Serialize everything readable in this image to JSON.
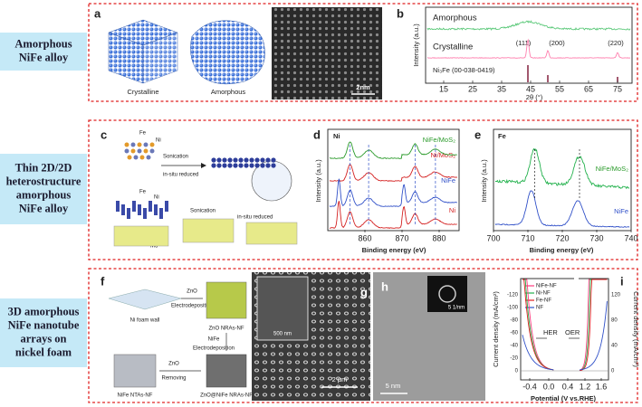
{
  "rows": [
    {
      "label": [
        "Amorphous",
        "NiFe alloy"
      ]
    },
    {
      "label": [
        "Thin 2D/2D",
        "heterostructure",
        "amorphous",
        "NiFe alloy"
      ]
    },
    {
      "label": [
        "3D amorphous",
        "NiFe nanotube",
        "arrays on",
        "nickel foam"
      ]
    }
  ],
  "panels": {
    "a": {
      "letter": "a",
      "crystalline": "Crystalline",
      "amorphous": "Amorphous",
      "scale_bar": "2nm"
    },
    "b": {
      "letter": "b",
      "trace_amorphous": "Amorphous",
      "trace_crystalline": "Crystalline",
      "peaks": [
        "(111)",
        "(200)",
        "(220)"
      ],
      "reference": "Ni₃Fe (00-038-0419)",
      "y_label": "Intensity (a.u.)",
      "x_label": "2θ (°)",
      "x_ticks": [
        "15",
        "25",
        "35",
        "45",
        "55",
        "65",
        "75"
      ]
    },
    "c": {
      "letter": "c",
      "top": {
        "fe": "Fe",
        "ni": "Ni",
        "step1": "Sonication",
        "step2": "in-situ reduced"
      },
      "bottom": {
        "fe": "Fe",
        "ni": "Ni",
        "s": "S",
        "mo": "Mo",
        "step1": "Sonication",
        "step2": "in-situ reduced"
      }
    },
    "d": {
      "letter": "d",
      "element": "Ni",
      "traces": [
        "NiFe/MoS₂",
        "Ni/MoS₂",
        "NiFe",
        "Ni"
      ],
      "y_label": "Intensity (a.u.)",
      "x_label": "Binding energy (eV)",
      "x_ticks": [
        "860",
        "870",
        "880"
      ]
    },
    "e": {
      "letter": "e",
      "element": "Fe",
      "traces": [
        "NiFe/MoS₂",
        "NiFe"
      ],
      "y_label": "Intensity (a.u.)",
      "x_label": "Binding energy (eV)",
      "x_ticks": [
        "700",
        "710",
        "720",
        "730",
        "740"
      ]
    },
    "f": {
      "letter": "f",
      "foam": "Ni foam wall",
      "step1a": "ZnO",
      "step1b": "Electrodeposition",
      "zno": "ZnO NRAs-NF",
      "step2a": "NiFe",
      "step2b": "Electrodeposition",
      "step3a": "ZnO",
      "step3b": "Removing",
      "core_shell": "ZnO@NiFe NRAs-NF",
      "tubes": "NiFe NTAs-NF"
    },
    "g": {
      "letter": "g",
      "inset_scale": "500 nm",
      "scale_bar": "2 μm"
    },
    "h": {
      "letter": "h",
      "inset_scale": "5 1/nm",
      "scale_bar": "5 nm"
    },
    "i": {
      "letter": "i",
      "legend": [
        "NiFe-NF",
        "Ni-NF",
        "Fe-NF",
        "NF"
      ],
      "her": "HER",
      "oer": "OER",
      "y_label": "Current density (mA/cm²)",
      "y2_label": "Current density (mA/cm²)",
      "x_label": "Potential (V vs.RHE)",
      "y_ticks": [
        "-120",
        "-100",
        "-80",
        "-60",
        "-40",
        "-20",
        "0"
      ],
      "y2_ticks": [
        "0",
        "40",
        "80",
        "120"
      ],
      "x_ticks": [
        "-0.4",
        "0.0",
        "0.4",
        "1.2",
        "1.6"
      ]
    }
  }
}
